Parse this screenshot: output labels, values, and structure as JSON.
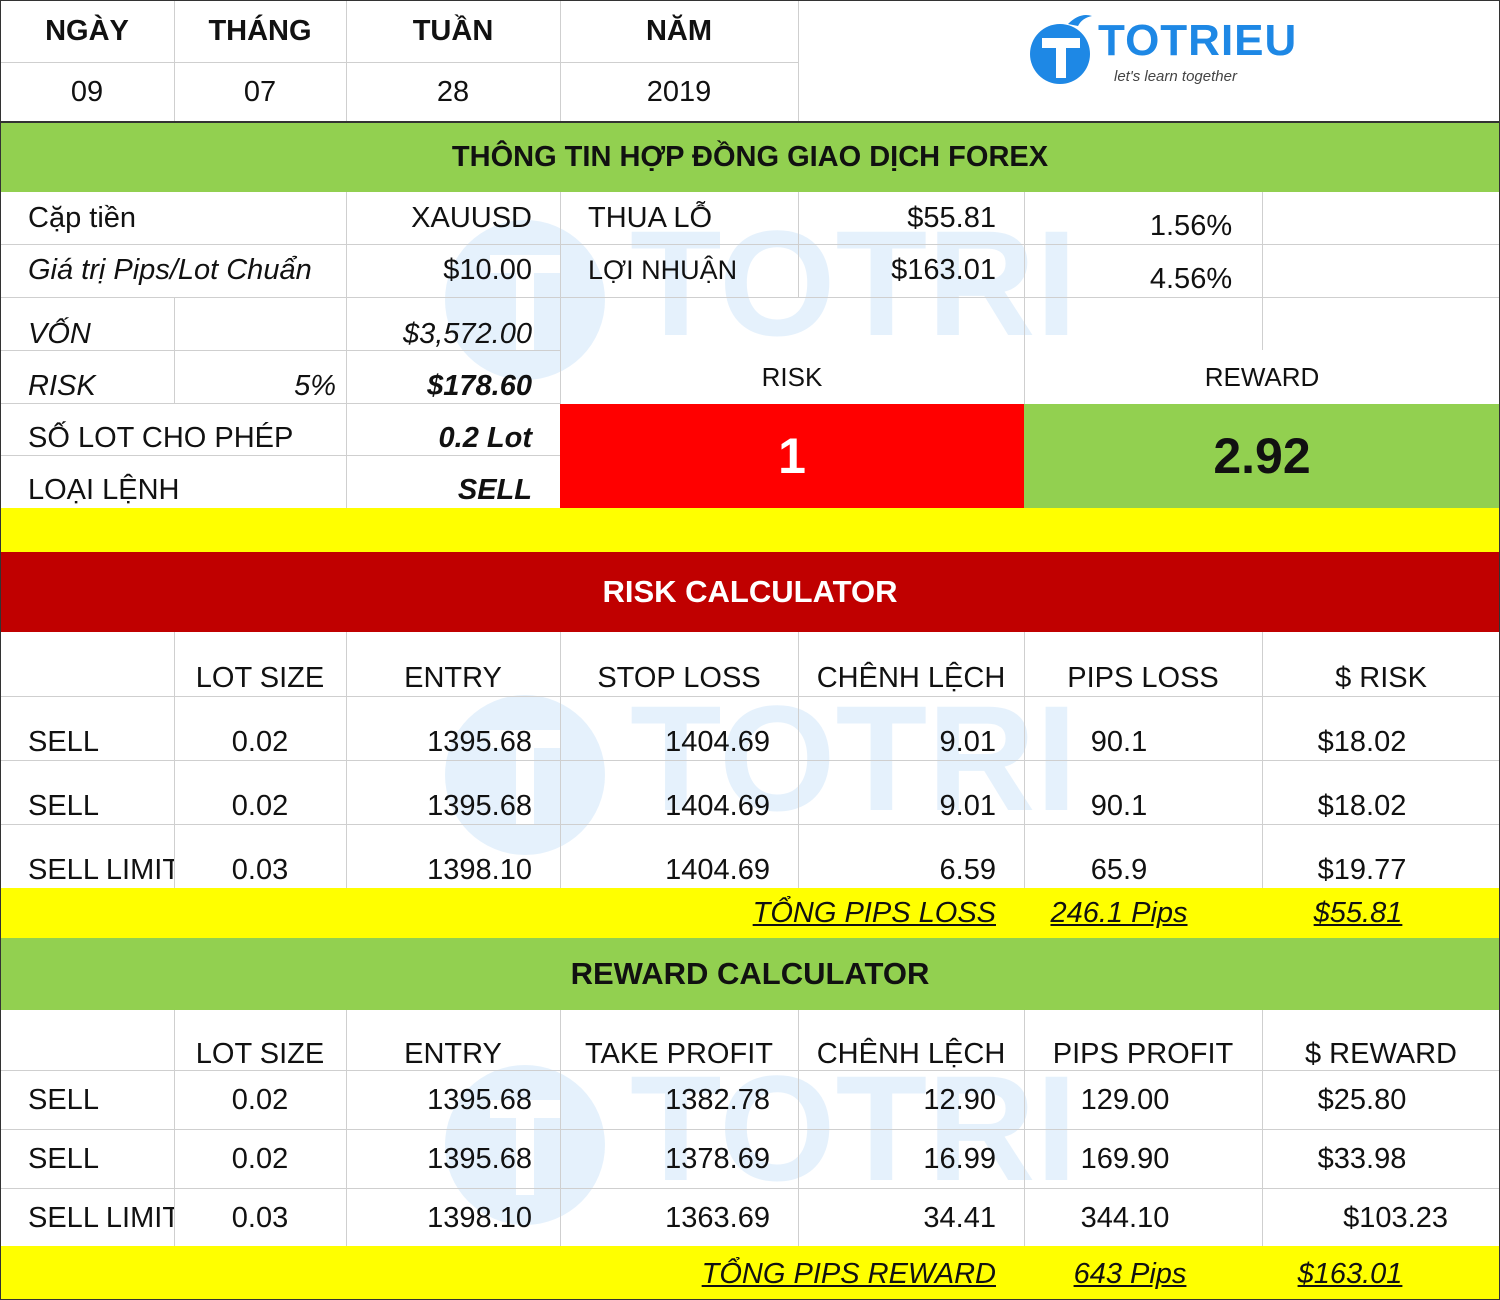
{
  "header": {
    "labels": [
      "NGÀY",
      "THÁNG",
      "TUẦN",
      "NĂM"
    ],
    "values": [
      "09",
      "07",
      "28",
      "2019"
    ]
  },
  "logo": {
    "name": "TOTRIEU",
    "tagline": "let's learn together",
    "color": "#1e88e5"
  },
  "contract": {
    "title": "THÔNG TIN HỢP ĐỒNG GIAO DỊCH FOREX",
    "pair_label": "Cặp tiền",
    "pair_value": "XAUUSD",
    "pip_label": "Giá trị Pips/Lot Chuẩn",
    "pip_value": "$10.00",
    "loss_label": "THUA LỖ",
    "loss_value": "$55.81",
    "loss_pct": "1.56%",
    "profit_label": "LỢI NHUẬN",
    "profit_value": "$163.01",
    "profit_pct": "4.56%",
    "capital_label": "VỐN",
    "capital_value": "$3,572.00",
    "risk_label": "RISK",
    "risk_pct": "5%",
    "risk_value": "$178.60",
    "lots_label": "SỐ LOT CHO PHÉP",
    "lots_value": "0.2 Lot",
    "order_label": "LOẠI LỆNH",
    "order_value": "SELL",
    "ratio_risk_label": "RISK",
    "ratio_risk_value": "1",
    "ratio_reward_label": "REWARD",
    "ratio_reward_value": "2.92"
  },
  "risk_calc": {
    "title": "RISK CALCULATOR",
    "headers": [
      "LOT SIZE",
      "ENTRY",
      "STOP LOSS",
      "CHÊNH LỆCH",
      "PIPS LOSS",
      "$ RISK"
    ],
    "rows": [
      [
        "SELL",
        "0.02",
        "1395.68",
        "1404.69",
        "9.01",
        "90.1",
        "$18.02"
      ],
      [
        "SELL",
        "0.02",
        "1395.68",
        "1404.69",
        "9.01",
        "90.1",
        "$18.02"
      ],
      [
        "SELL LIMIT",
        "0.03",
        "1398.10",
        "1404.69",
        "6.59",
        "65.9",
        "$19.77"
      ]
    ],
    "total_label": "TỔNG PIPS LOSS",
    "total_pips": "246.1 Pips",
    "total_money": "$55.81"
  },
  "reward_calc": {
    "title": "REWARD CALCULATOR",
    "headers": [
      "LOT SIZE",
      "ENTRY",
      "TAKE PROFIT",
      "CHÊNH LỆCH",
      "PIPS PROFIT",
      "$ REWARD"
    ],
    "rows": [
      [
        "SELL",
        "0.02",
        "1395.68",
        "1382.78",
        "12.90",
        "129.00",
        "$25.80"
      ],
      [
        "SELL",
        "0.02",
        "1395.68",
        "1378.69",
        "16.99",
        "169.90",
        "$33.98"
      ],
      [
        "SELL LIMIT",
        "0.03",
        "1398.10",
        "1363.69",
        "34.41",
        "344.10",
        "$103.23"
      ]
    ],
    "total_label": "TỔNG PIPS REWARD",
    "total_pips": "643 Pips",
    "total_money": "$163.01"
  },
  "colors": {
    "green": "#92d050",
    "yellow": "#ffff00",
    "red": "#ff0000",
    "dark_red": "#c00000"
  }
}
